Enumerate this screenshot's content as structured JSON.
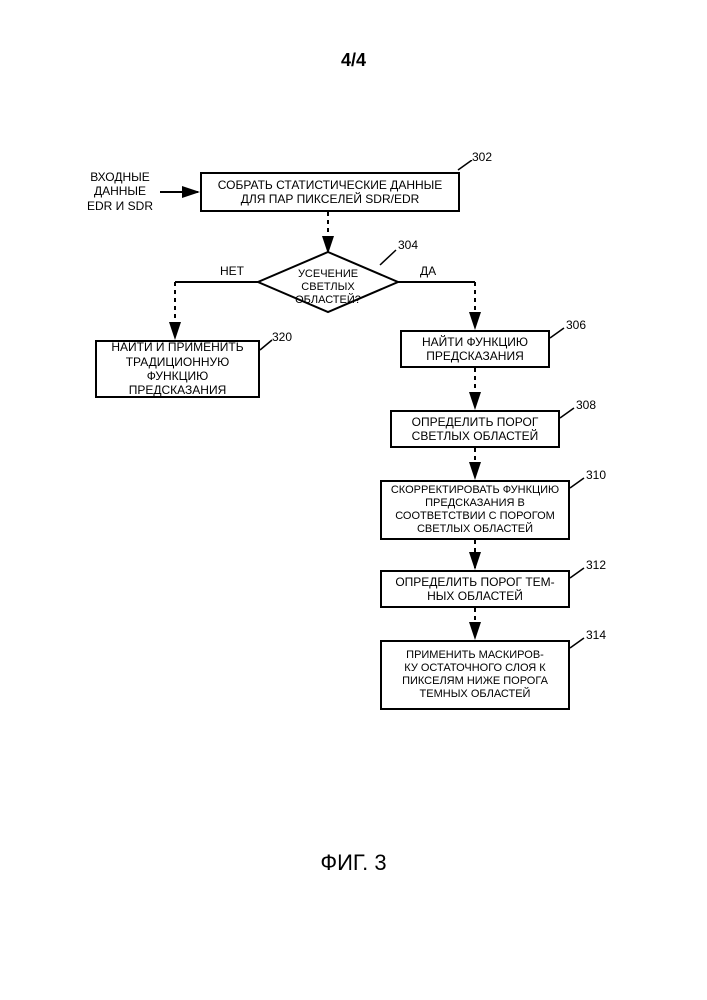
{
  "page_label": "4/4",
  "caption": "ФИГ. 3",
  "colors": {
    "stroke": "#000000",
    "background": "#ffffff"
  },
  "nodes": {
    "input_label": "ВХОДНЫЕ\nДАННЫЕ\nEDR И SDR",
    "n302": "СОБРАТЬ СТАТИСТИЧЕСКИЕ ДАННЫЕ ДЛЯ ПАР ПИКСЕЛЕЙ SDR/EDR",
    "n304": "УСЕЧЕНИЕ СВЕТЛЫХ ОБЛАСТЕЙ?",
    "no_label": "НЕТ",
    "yes_label": "ДА",
    "n320": "НАЙТИ И ПРИМЕНИТЬ ТРАДИЦИОННУЮ ФУНКЦИЮ ПРЕДСКАЗАНИЯ",
    "n306": "НАЙТИ ФУНКЦИЮ ПРЕДСКАЗАНИЯ",
    "n308": "ОПРЕДЕЛИТЬ ПОРОГ СВЕТЛЫХ ОБЛАСТЕЙ",
    "n310": "СКОРРЕКТИРОВАТЬ ФУНКЦИЮ ПРЕДСКАЗАНИЯ В СООТВЕТСТВИИ С ПОРОГОМ СВЕТЛЫХ ОБЛАСТЕЙ",
    "n312": "ОПРЕДЕЛИТЬ ПОРОГ ТЕМ-\nНЫХ ОБЛАСТЕЙ",
    "n314": "ПРИМЕНИТЬ МАСКИРОВ-\nКУ ОСТАТОЧНОГО СЛОЯ К ПИКСЕЛЯМ НИЖЕ ПОРОГА ТЕМНЫХ ОБЛАСТЕЙ"
  },
  "refs": {
    "r302": "302",
    "r304": "304",
    "r320": "320",
    "r306": "306",
    "r308": "308",
    "r310": "310",
    "r312": "312",
    "r314": "314"
  },
  "layout": {
    "box_stroke_width": 2,
    "font_size_pt": 9,
    "caption_font_size_pt": 16,
    "aspect_ratio": "707:1000"
  },
  "flowchart": {
    "type": "flowchart",
    "edges": [
      {
        "from": "input",
        "to": "302"
      },
      {
        "from": "302",
        "to": "304"
      },
      {
        "from": "304",
        "to": "320",
        "label": "НЕТ"
      },
      {
        "from": "304",
        "to": "306",
        "label": "ДА"
      },
      {
        "from": "306",
        "to": "308"
      },
      {
        "from": "308",
        "to": "310"
      },
      {
        "from": "310",
        "to": "312"
      },
      {
        "from": "312",
        "to": "314"
      }
    ]
  }
}
